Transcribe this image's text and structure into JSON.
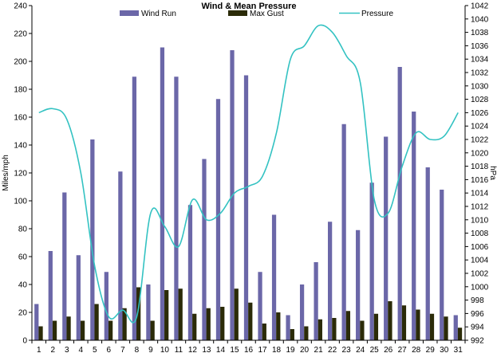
{
  "chart_data": {
    "type": "bar",
    "title": "Wind & Mean Pressure",
    "x": [
      1,
      2,
      3,
      4,
      5,
      6,
      7,
      8,
      9,
      10,
      11,
      12,
      13,
      14,
      15,
      16,
      17,
      18,
      19,
      20,
      21,
      22,
      23,
      24,
      25,
      26,
      27,
      28,
      29,
      30,
      31
    ],
    "ylabel": "Miles/mph",
    "y2label": "hPa",
    "ylim": [
      0,
      240
    ],
    "y2lim": [
      992,
      1042
    ],
    "yticks": [
      0,
      20,
      40,
      60,
      80,
      100,
      120,
      140,
      160,
      180,
      200,
      220,
      240
    ],
    "y2ticks": [
      992,
      994,
      996,
      998,
      1000,
      1002,
      1004,
      1006,
      1008,
      1010,
      1012,
      1014,
      1016,
      1018,
      1020,
      1022,
      1024,
      1026,
      1028,
      1030,
      1032,
      1034,
      1036,
      1038,
      1040,
      1042
    ],
    "grid": false,
    "legend_position": "top",
    "series": [
      {
        "name": "Wind Run",
        "kind": "bar",
        "axis": "left",
        "color": "#6b67a8",
        "values": [
          26,
          64,
          106,
          61,
          144,
          49,
          121,
          189,
          40,
          210,
          189,
          97,
          130,
          173,
          208,
          190,
          49,
          90,
          18,
          40,
          56,
          85,
          155,
          79,
          113,
          146,
          196,
          164,
          124,
          108,
          18
        ]
      },
      {
        "name": "Max Gust",
        "kind": "bar",
        "axis": "left",
        "color": "#2b2b08",
        "values": [
          10,
          14,
          17,
          14,
          26,
          14,
          23,
          38,
          14,
          36,
          37,
          19,
          23,
          24,
          37,
          27,
          12,
          20,
          8,
          10,
          15,
          16,
          21,
          14,
          19,
          28,
          25,
          22,
          19,
          17,
          9
        ]
      },
      {
        "name": "Pressure",
        "kind": "line",
        "axis": "right",
        "color": "#33c2c2",
        "values": [
          1026,
          1026.6,
          1025,
          1017,
          1003,
          995.5,
          996.5,
          995.5,
          1011,
          1009,
          1006,
          1013,
          1010,
          1011,
          1014,
          1015,
          1016.5,
          1023,
          1034,
          1036,
          1039,
          1038,
          1034.5,
          1030.5,
          1013,
          1011,
          1018,
          1023,
          1022,
          1022.5,
          1026
        ]
      }
    ]
  }
}
